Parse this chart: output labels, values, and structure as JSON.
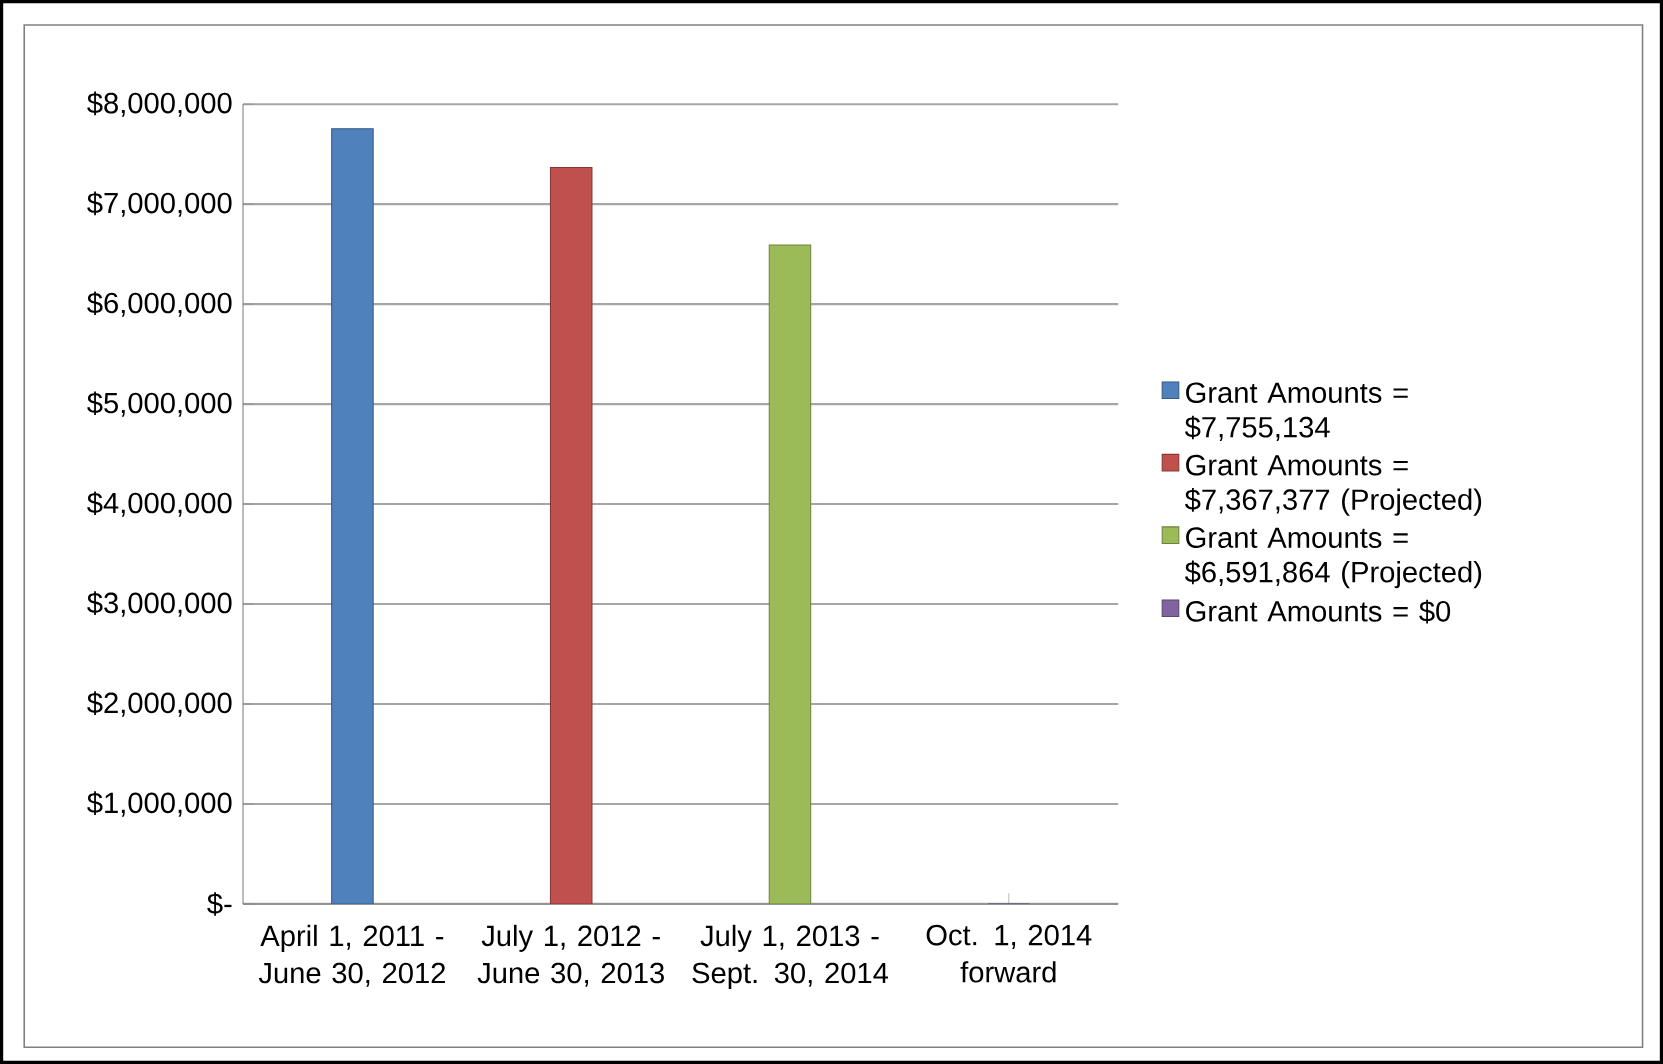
{
  "chart_data": {
    "type": "bar",
    "categories": [
      "April 1, 2011 - June 30, 2012",
      "July 1, 2012 - June 30, 2013",
      "July 1, 2013 - Sept. 30, 2014",
      "Oct. 1, 2014 forward"
    ],
    "series": [
      {
        "name": "Grant Amounts = $7,755,134",
        "color": "#4f81bd",
        "values": [
          7755134,
          null,
          null,
          null
        ]
      },
      {
        "name": "Grant Amounts = $7,367,377 (Projected)",
        "color": "#c0504d",
        "values": [
          null,
          7367377,
          null,
          null
        ]
      },
      {
        "name": "Grant Amounts = $6,591,864 (Projected)",
        "color": "#9bbb59",
        "values": [
          null,
          null,
          6591864,
          null
        ]
      },
      {
        "name": "Grant Amounts = $0",
        "color": "#8064a2",
        "values": [
          null,
          null,
          null,
          0
        ]
      }
    ],
    "ylim": [
      0,
      8000000
    ],
    "yticks": [
      {
        "value": 0,
        "label": "$-"
      },
      {
        "value": 1000000,
        "label": "$1,000,000"
      },
      {
        "value": 2000000,
        "label": "$2,000,000"
      },
      {
        "value": 3000000,
        "label": "$3,000,000"
      },
      {
        "value": 4000000,
        "label": "$4,000,000"
      },
      {
        "value": 5000000,
        "label": "$5,000,000"
      },
      {
        "value": 6000000,
        "label": "$6,000,000"
      },
      {
        "value": 7000000,
        "label": "$7,000,000"
      },
      {
        "value": 8000000,
        "label": "$8,000,000"
      }
    ],
    "grid": "y",
    "legend": "right"
  }
}
